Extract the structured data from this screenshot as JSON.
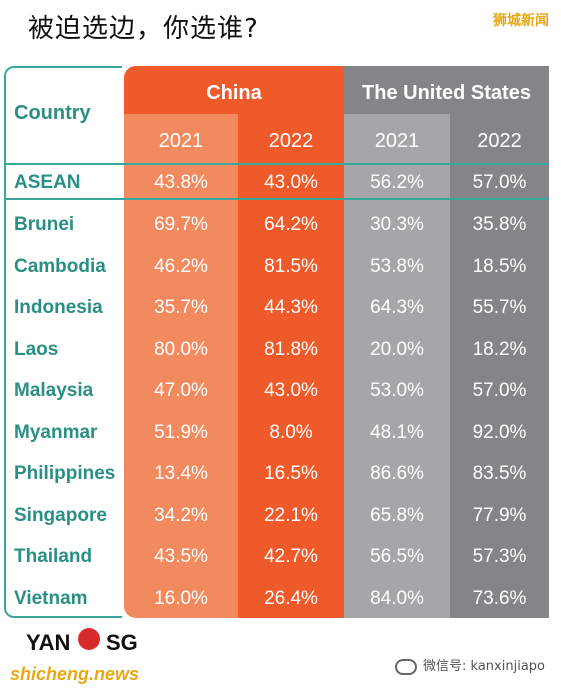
{
  "title": "被迫选边，你选谁?",
  "brand_top": "狮城新闻",
  "chart_data": {
    "type": "table",
    "column_header": "Country",
    "groups": [
      {
        "name": "China",
        "years": [
          "2021",
          "2022"
        ]
      },
      {
        "name": "The United States",
        "years": [
          "2021",
          "2022"
        ]
      }
    ],
    "rows": [
      {
        "country": "ASEAN",
        "values": [
          "43.8%",
          "43.0%",
          "56.2%",
          "57.0%"
        ]
      },
      {
        "country": "Brunei",
        "values": [
          "69.7%",
          "64.2%",
          "30.3%",
          "35.8%"
        ]
      },
      {
        "country": "Cambodia",
        "values": [
          "46.2%",
          "81.5%",
          "53.8%",
          "18.5%"
        ]
      },
      {
        "country": "Indonesia",
        "values": [
          "35.7%",
          "44.3%",
          "64.3%",
          "55.7%"
        ]
      },
      {
        "country": "Laos",
        "values": [
          "80.0%",
          "81.8%",
          "20.0%",
          "18.2%"
        ]
      },
      {
        "country": "Malaysia",
        "values": [
          "47.0%",
          "43.0%",
          "53.0%",
          "57.0%"
        ]
      },
      {
        "country": "Myanmar",
        "values": [
          "51.9%",
          "8.0%",
          "48.1%",
          "92.0%"
        ]
      },
      {
        "country": "Philippines",
        "values": [
          "13.4%",
          "16.5%",
          "86.6%",
          "83.5%"
        ]
      },
      {
        "country": "Singapore",
        "values": [
          "34.2%",
          "22.1%",
          "65.8%",
          "77.9%"
        ]
      },
      {
        "country": "Thailand",
        "values": [
          "43.5%",
          "42.7%",
          "56.5%",
          "57.3%"
        ]
      },
      {
        "country": "Vietnam",
        "values": [
          "16.0%",
          "26.4%",
          "84.0%",
          "73.6%"
        ]
      }
    ],
    "colors": {
      "china_2021": "#f28a5f",
      "china_2022": "#ef5a2a",
      "us_2021": "#a6a6a8",
      "us_2022": "#858588",
      "country_text": "#2a8f84"
    }
  },
  "footer": {
    "logo_left": "YAN",
    "logo_right": "SG",
    "site": "shicheng.news",
    "wechat": "微信号: kanxinjiapo"
  }
}
